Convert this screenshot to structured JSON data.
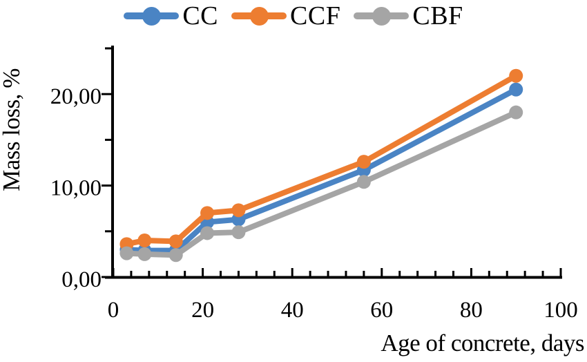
{
  "figure": {
    "background": "#ffffff",
    "text_color": "#000000",
    "axis_color": "#000000"
  },
  "chart_data": {
    "type": "line",
    "xlabel": "Age of concrete, days",
    "ylabel": "Mass loss, %",
    "x": [
      3,
      7,
      14,
      21,
      28,
      56,
      90
    ],
    "series": [
      {
        "name": "CC",
        "color": "#4A84C4",
        "marker": "circle",
        "values": [
          3.0,
          2.9,
          2.9,
          6.0,
          6.3,
          11.7,
          20.5
        ]
      },
      {
        "name": "CCF",
        "color": "#ED7D31",
        "marker": "circle",
        "values": [
          3.6,
          4.0,
          3.9,
          7.0,
          7.3,
          12.6,
          22.0
        ]
      },
      {
        "name": "CBF",
        "color": "#A5A5A5",
        "marker": "circle",
        "values": [
          2.6,
          2.5,
          2.4,
          4.8,
          4.9,
          10.4,
          18.0
        ]
      }
    ],
    "xlim": [
      0,
      100
    ],
    "ylim": [
      0,
      25
    ],
    "x_major_ticks": [
      {
        "value": 0,
        "label": "0"
      },
      {
        "value": 20,
        "label": "20"
      },
      {
        "value": 40,
        "label": "40"
      },
      {
        "value": 60,
        "label": "60"
      },
      {
        "value": 80,
        "label": "80"
      },
      {
        "value": 100,
        "label": "100"
      }
    ],
    "x_minor_step": 4,
    "y_minor_step": 5,
    "y_label_ticks": [
      {
        "value": 0,
        "label": "0,00"
      },
      {
        "value": 10,
        "label": "10,00"
      },
      {
        "value": 20,
        "label": "20,00"
      }
    ],
    "legend_position": "top",
    "grid": false,
    "decimal_separator": ","
  }
}
